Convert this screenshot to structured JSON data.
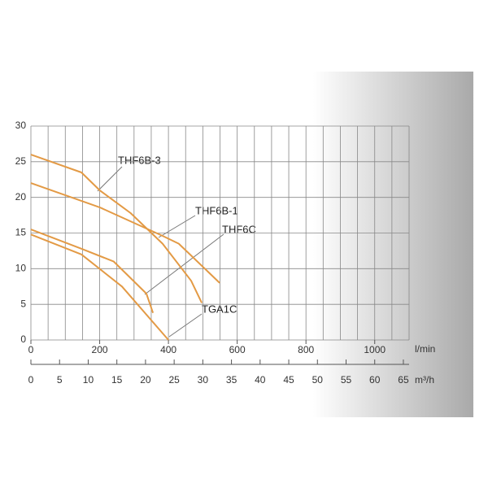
{
  "chart_data": {
    "type": "line",
    "x_label": "l/min",
    "x2_label": "m³/h",
    "xlim": [
      0,
      1100
    ],
    "xticks": [
      0,
      200,
      400,
      600,
      800,
      1000
    ],
    "x2lim": [
      0,
      66
    ],
    "x2ticks": [
      0,
      5,
      10,
      15,
      20,
      25,
      30,
      35,
      40,
      45,
      50,
      55,
      60,
      65
    ],
    "ylim": [
      0,
      30
    ],
    "yticks": [
      0,
      5,
      10,
      15,
      20,
      25,
      30
    ],
    "grid": true,
    "series": [
      {
        "name": "THF6B-3",
        "color": "#e39a45",
        "x": [
          0,
          147,
          200,
          290,
          383,
          466,
          497
        ],
        "values": [
          26,
          23.5,
          21,
          17.8,
          13.5,
          8.3,
          5.2
        ]
      },
      {
        "name": "THF6B-1",
        "color": "#e39a45",
        "x": [
          0,
          200,
          383,
          430,
          549
        ],
        "values": [
          22,
          18.6,
          14.6,
          13.5,
          8
        ]
      },
      {
        "name": "THF6C",
        "color": "#e39a45",
        "x": [
          0,
          147,
          241,
          336,
          355
        ],
        "values": [
          15.5,
          12.8,
          11,
          6.5,
          3.8
        ]
      },
      {
        "name": "TGA1C",
        "color": "#e39a45",
        "x": [
          0,
          147,
          265,
          400
        ],
        "values": [
          14.8,
          12,
          7.5,
          0
        ]
      }
    ]
  }
}
